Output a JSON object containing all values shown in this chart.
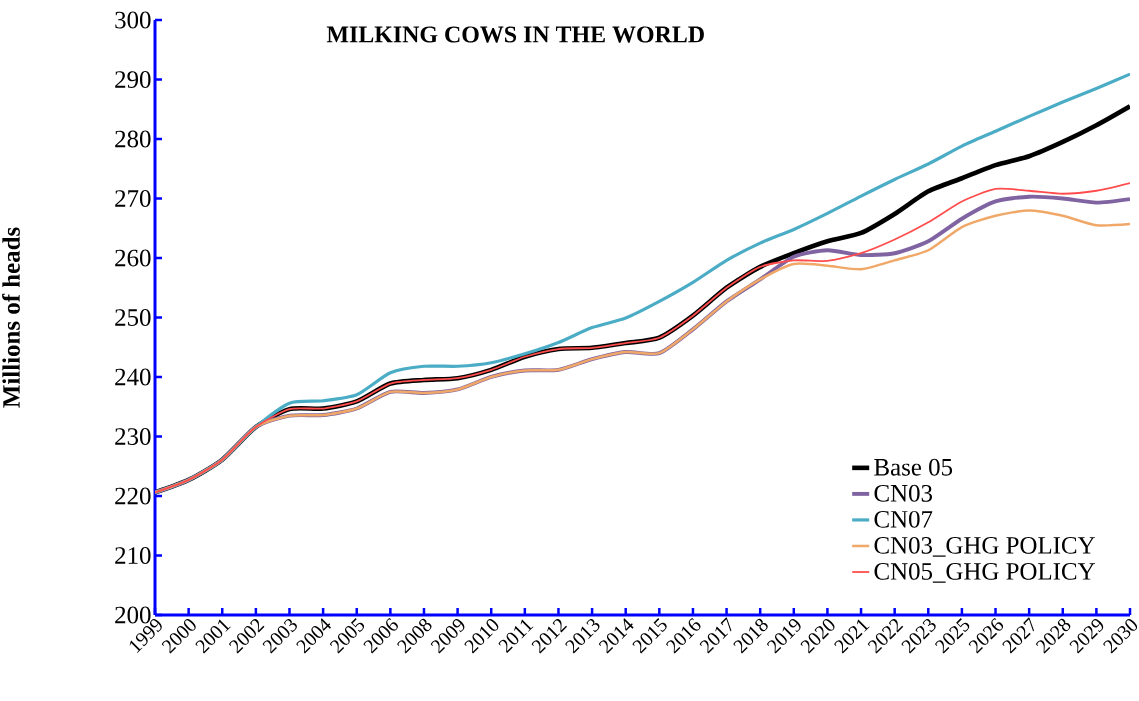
{
  "chart_data": {
    "type": "line",
    "title": "MILKING COWS IN THE WORLD",
    "ylabel": "Millions of heads",
    "categories": [
      "1999",
      "2000",
      "2001",
      "2002",
      "2003",
      "2004",
      "2005",
      "2006",
      "2008",
      "2009",
      "2010",
      "2011",
      "2012",
      "2013",
      "2014",
      "2015",
      "2016",
      "2017",
      "2018",
      "2019",
      "2020",
      "2021",
      "2022",
      "2023",
      "2025",
      "2026",
      "2027",
      "2028",
      "2029",
      "2030"
    ],
    "series": [
      {
        "name": "Base 05",
        "color": "#000000",
        "values": [
          220.6,
          222.7,
          226.1,
          231.6,
          234.6,
          234.7,
          235.9,
          238.9,
          239.5,
          239.8,
          241.2,
          243.4,
          244.7,
          244.9,
          245.7,
          246.6,
          250.3,
          255.0,
          258.5,
          260.8,
          262.8,
          264.2,
          267.4,
          271.2,
          273.4,
          275.6,
          277.1,
          279.5,
          282.3,
          285.5
        ]
      },
      {
        "name": "CN03",
        "color": "#8064a2",
        "values": [
          220.6,
          222.7,
          226.1,
          231.6,
          233.5,
          233.6,
          234.7,
          237.5,
          237.3,
          237.9,
          240.0,
          241.1,
          241.2,
          243.0,
          244.2,
          244.0,
          248.0,
          252.7,
          256.4,
          260.2,
          261.3,
          260.5,
          260.8,
          262.8,
          266.6,
          269.5,
          270.3,
          270.0,
          269.3,
          269.9
        ]
      },
      {
        "name": "CN07",
        "color": "#4bacc6",
        "values": [
          220.6,
          222.7,
          226.1,
          231.6,
          235.6,
          236.0,
          237.0,
          240.7,
          241.8,
          241.8,
          242.4,
          243.9,
          245.8,
          248.3,
          249.9,
          252.7,
          255.9,
          259.6,
          262.5,
          264.8,
          267.5,
          270.4,
          273.2,
          275.8,
          278.8,
          281.3,
          283.8,
          286.2,
          288.5,
          290.9
        ]
      },
      {
        "name": "CN03_GHG POLICY",
        "color": "#f0a868",
        "values": [
          220.6,
          222.7,
          226.1,
          231.6,
          233.5,
          233.6,
          234.7,
          237.5,
          237.3,
          237.9,
          240.0,
          241.1,
          241.2,
          243.0,
          244.2,
          244.0,
          248.0,
          252.7,
          256.4,
          259.0,
          258.7,
          258.1,
          259.6,
          261.3,
          265.2,
          267.1,
          268.0,
          267.1,
          265.5,
          265.7
        ]
      },
      {
        "name": "CN05_GHG POLICY",
        "color": "#ff4d4d",
        "values": [
          220.6,
          222.7,
          226.1,
          231.6,
          234.6,
          234.7,
          235.9,
          238.9,
          239.5,
          239.8,
          241.2,
          243.4,
          244.7,
          244.9,
          245.7,
          246.6,
          250.3,
          255.0,
          258.5,
          259.6,
          259.5,
          260.8,
          263.1,
          266.0,
          269.5,
          271.6,
          271.3,
          270.8,
          271.3,
          272.6
        ]
      }
    ],
    "ylim": [
      200,
      300
    ],
    "yticks": [
      200,
      210,
      220,
      230,
      240,
      250,
      260,
      270,
      280,
      290,
      300
    ],
    "legend": "bottom right",
    "grid": false,
    "marker": "none",
    "line_style": "solid"
  }
}
